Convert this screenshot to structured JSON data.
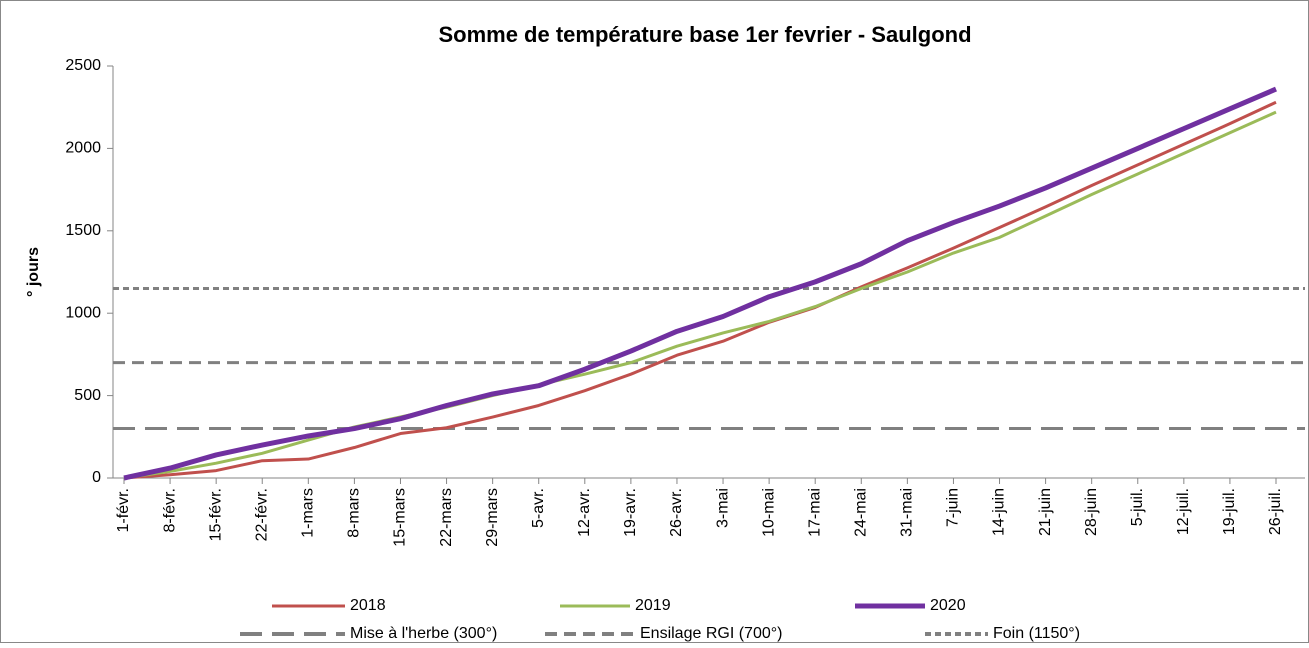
{
  "chart_data": {
    "type": "line",
    "title": "Somme de température base 1er fevrier - Saulgond",
    "y_label": "° jours",
    "categories": [
      "1-févr.",
      "8-févr.",
      "15-févr.",
      "22-févr.",
      "1-mars",
      "8-mars",
      "15-mars",
      "22-mars",
      "29-mars",
      "5-avr.",
      "12-avr.",
      "19-avr.",
      "26-avr.",
      "3-mai",
      "10-mai",
      "17-mai",
      "24-mai",
      "31-mai",
      "7-juin",
      "14-juin",
      "21-juin",
      "28-juin",
      "5-juil.",
      "12-juil.",
      "19-juil.",
      "26-juil."
    ],
    "series": [
      {
        "name": "2018",
        "color": "#c0504d",
        "width": 3,
        "values": [
          0,
          20,
          45,
          105,
          115,
          185,
          270,
          305,
          370,
          440,
          530,
          630,
          745,
          830,
          945,
          1035,
          1160,
          1275,
          1395,
          1520,
          1645,
          1775,
          1900,
          2025,
          2150,
          2280
        ]
      },
      {
        "name": "2019",
        "color": "#9bbb59",
        "width": 3,
        "values": [
          0,
          40,
          90,
          150,
          230,
          310,
          370,
          430,
          500,
          565,
          630,
          700,
          800,
          880,
          950,
          1040,
          1150,
          1250,
          1365,
          1460,
          1590,
          1720,
          1845,
          1970,
          2095,
          2220
        ]
      },
      {
        "name": "2020",
        "color": "#7030a0",
        "width": 5,
        "values": [
          0,
          60,
          140,
          200,
          255,
          300,
          360,
          440,
          510,
          560,
          660,
          770,
          890,
          980,
          1100,
          1190,
          1300,
          1440,
          1550,
          1650,
          1760,
          1880,
          2000,
          2120,
          2240,
          2360
        ]
      }
    ],
    "reference_lines": [
      {
        "name": "Mise à l'herbe (300°)",
        "value": 300,
        "color": "#808080",
        "dash": "long"
      },
      {
        "name": "Ensilage RGI (700°)",
        "value": 700,
        "color": "#808080",
        "dash": "medium"
      },
      {
        "name": "Foin (1150°)",
        "value": 1150,
        "color": "#808080",
        "dash": "short"
      }
    ],
    "ylim": [
      0,
      2500
    ],
    "yticks": [
      0,
      500,
      1000,
      1500,
      2000,
      2500
    ],
    "grid": false,
    "legend": "bottom"
  }
}
